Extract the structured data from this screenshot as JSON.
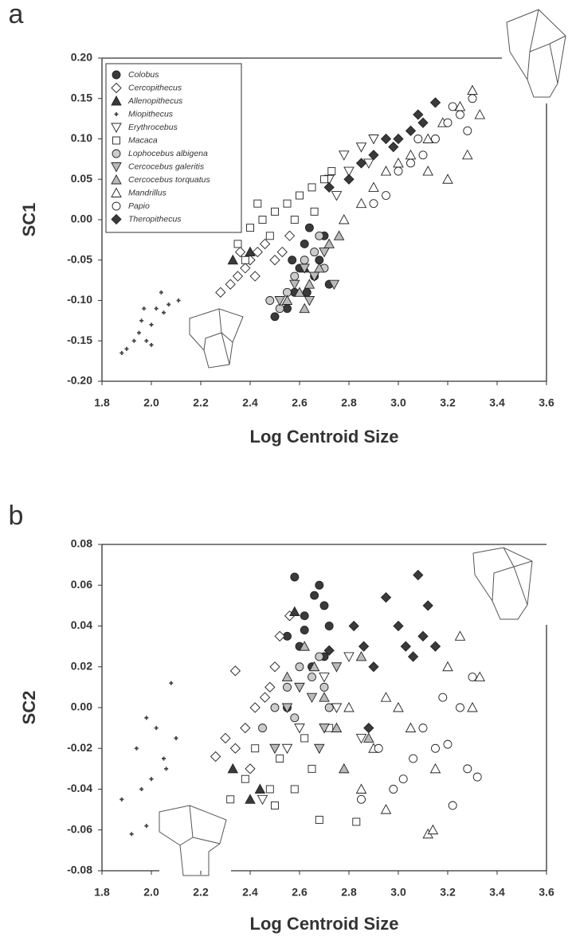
{
  "chart_data": [
    {
      "type": "scatter",
      "panel_label": "a",
      "xlabel": "Log Centroid Size",
      "ylabel": "SC1",
      "xlim": [
        1.8,
        3.6
      ],
      "ylim": [
        -0.2,
        0.2
      ],
      "xticks": [
        1.8,
        {
          "value": 2,
          "label": "2.0"
        },
        2.2,
        2.4,
        2.6,
        2.8,
        {
          "value": 3,
          "label": "3.0"
        },
        3.2,
        3.4,
        3.6
      ],
      "yticks": [
        {
          "value": -0.2,
          "label": "-0.20"
        },
        -0.15,
        {
          "value": -0.1,
          "label": "-0.10"
        },
        -0.05,
        {
          "value": 0,
          "label": "0.00"
        },
        0.05,
        {
          "value": 0.1,
          "label": "0.10"
        },
        0.15,
        {
          "value": 0.2,
          "label": "0.20"
        }
      ],
      "legend": "upper left",
      "series": [
        {
          "name": "Colobus",
          "marker": "circle",
          "color": "#3a3a3a",
          "x": [
            2.5,
            2.55,
            2.58,
            2.6,
            2.62,
            2.64,
            2.66,
            2.68,
            2.7,
            2.72,
            2.57,
            2.63
          ],
          "y": [
            -0.12,
            -0.11,
            -0.09,
            -0.06,
            -0.03,
            -0.01,
            -0.07,
            -0.05,
            -0.02,
            -0.08,
            -0.05,
            -0.09
          ]
        },
        {
          "name": "Cercopithecus",
          "marker": "diamond",
          "color": "#ffffff",
          "x": [
            2.28,
            2.32,
            2.35,
            2.38,
            2.4,
            2.43,
            2.46,
            2.5,
            2.53,
            2.56,
            2.42,
            2.36
          ],
          "y": [
            -0.09,
            -0.08,
            -0.07,
            -0.06,
            -0.05,
            -0.04,
            -0.03,
            -0.05,
            -0.04,
            -0.02,
            -0.07,
            -0.04
          ]
        },
        {
          "name": "Allenopithecus",
          "marker": "triangle-up",
          "color": "#3a3a3a",
          "x": [
            2.33,
            2.4,
            2.62
          ],
          "y": [
            -0.05,
            -0.04,
            -0.06
          ]
        },
        {
          "name": "Miopithecus",
          "marker": "plus",
          "color": "#444444",
          "x": [
            1.88,
            1.9,
            1.93,
            1.95,
            1.96,
            1.98,
            2.0,
            2.02,
            2.04,
            2.05,
            2.07,
            2.11,
            1.97,
            2.0
          ],
          "y": [
            -0.165,
            -0.16,
            -0.15,
            -0.14,
            -0.125,
            -0.15,
            -0.13,
            -0.11,
            -0.09,
            -0.115,
            -0.105,
            -0.1,
            -0.11,
            -0.155
          ]
        },
        {
          "name": "Erythrocebus",
          "marker": "triangle-down",
          "color": "#ffffff",
          "x": [
            2.72,
            2.78,
            2.85,
            2.9,
            2.88,
            2.8,
            2.75
          ],
          "y": [
            0.05,
            0.08,
            0.09,
            0.1,
            0.07,
            0.06,
            0.03
          ]
        },
        {
          "name": "Macaca",
          "marker": "square",
          "color": "#ffffff",
          "x": [
            2.35,
            2.4,
            2.45,
            2.5,
            2.55,
            2.6,
            2.65,
            2.7,
            2.73,
            2.48,
            2.58,
            2.43,
            2.66,
            2.38
          ],
          "y": [
            -0.03,
            -0.01,
            0,
            0.01,
            0.02,
            0.03,
            0.04,
            0.05,
            0.06,
            -0.02,
            0,
            0.02,
            0.01,
            -0.05
          ]
        },
        {
          "name": "Lophocebus albigena",
          "marker": "circle",
          "color": "#cccccc",
          "x": [
            2.48,
            2.52,
            2.55,
            2.58,
            2.62,
            2.66,
            2.68,
            2.7
          ],
          "y": [
            -0.1,
            -0.11,
            -0.09,
            -0.07,
            -0.05,
            -0.04,
            -0.02,
            -0.06
          ]
        },
        {
          "name": "Cercocebus galeritis",
          "marker": "triangle-down",
          "color": "#bbbbbb",
          "x": [
            2.52,
            2.58,
            2.62,
            2.66,
            2.7,
            2.74,
            2.64
          ],
          "y": [
            -0.1,
            -0.08,
            -0.06,
            -0.07,
            -0.04,
            -0.08,
            -0.1
          ]
        },
        {
          "name": "Cercocebus torquatus",
          "marker": "triangle-up",
          "color": "#bbbbbb",
          "x": [
            2.55,
            2.6,
            2.64,
            2.68,
            2.72,
            2.76,
            2.62
          ],
          "y": [
            -0.1,
            -0.09,
            -0.08,
            -0.06,
            -0.03,
            -0.02,
            -0.11
          ]
        },
        {
          "name": "Mandrillus",
          "marker": "triangle-up",
          "color": "#ffffff",
          "x": [
            2.78,
            2.85,
            2.9,
            2.95,
            3.05,
            3.12,
            3.18,
            3.25,
            3.3,
            3.33,
            3.28,
            3.2,
            3.12,
            3
          ],
          "y": [
            0,
            0.02,
            0.04,
            0.06,
            0.08,
            0.1,
            0.12,
            0.14,
            0.16,
            0.13,
            0.08,
            0.05,
            0.06,
            0.07
          ]
        },
        {
          "name": "Papio",
          "marker": "circle",
          "color": "#ffffff",
          "x": [
            2.9,
            2.95,
            3,
            3.05,
            3.1,
            3.15,
            3.2,
            3.25,
            3.3,
            3.22,
            3.08,
            3.28
          ],
          "y": [
            0.02,
            0.03,
            0.06,
            0.07,
            0.08,
            0.1,
            0.12,
            0.13,
            0.15,
            0.14,
            0.1,
            0.11
          ]
        },
        {
          "name": "Theropithecus",
          "marker": "diamond",
          "color": "#3a3a3a",
          "x": [
            2.72,
            2.8,
            2.85,
            2.9,
            2.95,
            3,
            3.05,
            3.1,
            3.15,
            2.98,
            3.08
          ],
          "y": [
            0.04,
            0.05,
            0.07,
            0.08,
            0.1,
            0.1,
            0.11,
            0.12,
            0.145,
            0.09,
            0.13
          ]
        }
      ]
    },
    {
      "type": "scatter",
      "panel_label": "b",
      "xlabel": "Log Centroid Size",
      "ylabel": "SC2",
      "xlim": [
        1.8,
        3.6
      ],
      "ylim": [
        -0.08,
        0.08
      ],
      "xticks": [
        1.8,
        {
          "value": 2,
          "label": "2.0"
        },
        2.2,
        2.4,
        2.6,
        2.8,
        {
          "value": 3,
          "label": "3.0"
        },
        3.2,
        3.4,
        3.6
      ],
      "yticks": [
        -0.08,
        -0.06,
        -0.04,
        -0.02,
        {
          "value": 0,
          "label": "0.00"
        },
        0.02,
        0.04,
        0.06,
        0.08
      ],
      "series": [
        {
          "marker": "circle",
          "color": "#3a3a3a",
          "x": [
            2.55,
            2.58,
            2.62,
            2.66,
            2.68,
            2.7,
            2.72,
            2.6,
            2.65,
            2.7,
            2.55,
            2.62
          ],
          "y": [
            0.035,
            0.064,
            0.045,
            0.055,
            0.06,
            0.05,
            0.04,
            0.03,
            0.02,
            0.025,
            0,
            0.038
          ]
        },
        {
          "marker": "diamond",
          "color": "#ffffff",
          "x": [
            2.26,
            2.3,
            2.34,
            2.38,
            2.42,
            2.46,
            2.5,
            2.52,
            2.56,
            2.34,
            2.4,
            2.48
          ],
          "y": [
            -0.024,
            -0.015,
            -0.02,
            -0.01,
            0,
            0.005,
            0.02,
            0.035,
            0.045,
            0.018,
            -0.03,
            0.01
          ]
        },
        {
          "marker": "triangle-up",
          "color": "#3a3a3a",
          "x": [
            2.33,
            2.4,
            2.44,
            2.58
          ],
          "y": [
            -0.03,
            -0.045,
            -0.04,
            0.047
          ]
        },
        {
          "marker": "plus",
          "color": "#444444",
          "x": [
            1.88,
            1.92,
            1.94,
            1.96,
            1.98,
            2,
            2.02,
            2.05,
            2.08,
            2.1,
            1.98,
            2.06
          ],
          "y": [
            -0.045,
            -0.062,
            -0.02,
            -0.04,
            -0.005,
            -0.035,
            -0.01,
            -0.025,
            0.012,
            -0.015,
            -0.058,
            -0.03
          ]
        },
        {
          "marker": "triangle-down",
          "color": "#ffffff",
          "x": [
            2.45,
            2.55,
            2.6,
            2.7,
            2.8,
            2.85,
            2.75
          ],
          "y": [
            -0.045,
            -0.02,
            -0.01,
            0.015,
            0.025,
            -0.015,
            0
          ]
        },
        {
          "marker": "square",
          "color": "#ffffff",
          "x": [
            2.32,
            2.38,
            2.42,
            2.48,
            2.52,
            2.58,
            2.65,
            2.68,
            2.72,
            2.83,
            2.5,
            2.62
          ],
          "y": [
            -0.045,
            -0.035,
            -0.02,
            -0.04,
            -0.025,
            -0.04,
            -0.03,
            -0.055,
            -0.01,
            -0.056,
            -0.048,
            -0.015
          ]
        },
        {
          "marker": "circle",
          "color": "#cccccc",
          "x": [
            2.45,
            2.5,
            2.55,
            2.6,
            2.65,
            2.68,
            2.7,
            2.58,
            2.72
          ],
          "y": [
            -0.01,
            0,
            0.01,
            0.02,
            0.015,
            0.025,
            0.01,
            -0.005,
            0
          ]
        },
        {
          "marker": "triangle-down",
          "color": "#bbbbbb",
          "x": [
            2.5,
            2.55,
            2.6,
            2.65,
            2.7,
            2.75,
            2.68
          ],
          "y": [
            -0.02,
            0,
            0.01,
            0.005,
            -0.01,
            0.02,
            -0.02
          ]
        },
        {
          "marker": "triangle-up",
          "color": "#bbbbbb",
          "x": [
            2.55,
            2.62,
            2.66,
            2.7,
            2.75,
            2.78,
            2.85,
            2.88
          ],
          "y": [
            0.015,
            0.03,
            0.02,
            0.005,
            -0.01,
            -0.03,
            0.025,
            -0.015
          ]
        },
        {
          "marker": "triangle-up",
          "color": "#ffffff",
          "x": [
            2.8,
            2.85,
            2.9,
            2.95,
            3,
            3.05,
            3.12,
            3.14,
            3.2,
            3.25,
            3.3,
            3.33,
            3.15,
            2.95
          ],
          "y": [
            0,
            -0.04,
            -0.02,
            0.005,
            0,
            -0.01,
            -0.062,
            -0.06,
            0.02,
            0.035,
            0,
            0.015,
            -0.03,
            -0.05
          ]
        },
        {
          "marker": "circle",
          "color": "#ffffff",
          "x": [
            2.85,
            2.92,
            2.98,
            3.02,
            3.06,
            3.1,
            3.15,
            3.2,
            3.22,
            3.25,
            3.28,
            3.3,
            3.18,
            3.32
          ],
          "y": [
            -0.045,
            -0.02,
            -0.04,
            -0.035,
            -0.025,
            -0.01,
            -0.02,
            -0.018,
            -0.048,
            0,
            -0.03,
            0.015,
            0.005,
            -0.034
          ]
        },
        {
          "marker": "diamond",
          "color": "#3a3a3a",
          "x": [
            2.82,
            2.86,
            2.9,
            2.95,
            3,
            3.03,
            3.06,
            3.08,
            3.1,
            3.12,
            3.15,
            2.72,
            2.88
          ],
          "y": [
            0.04,
            0.03,
            0.02,
            0.054,
            0.04,
            0.03,
            0.025,
            0.065,
            0.035,
            0.05,
            0.03,
            0.028,
            -0.01
          ]
        }
      ]
    }
  ]
}
